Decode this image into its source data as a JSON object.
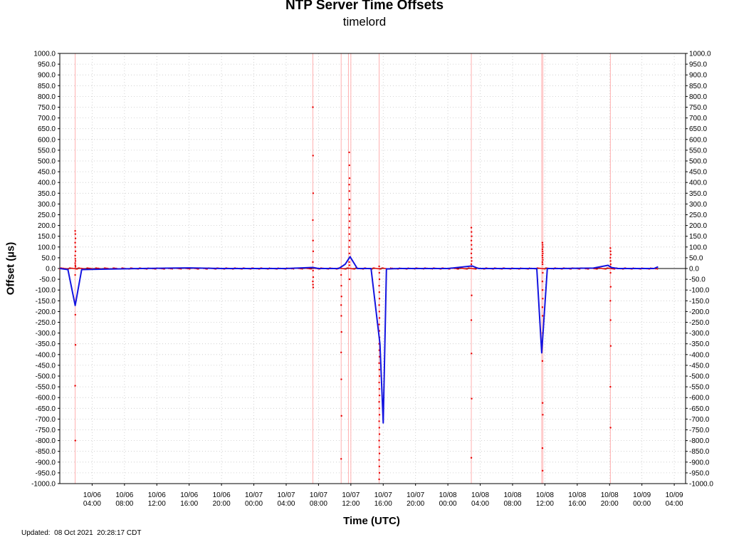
{
  "header": {
    "title": "NTP Server Time Offsets",
    "subtitle": "timelord"
  },
  "footer": {
    "updated": "Updated:  08 Oct 2021  20:28:17 CDT"
  },
  "colors": {
    "raw_points": "#e80000",
    "average_line": "#1414e0",
    "event_lines": "#ffb0b0",
    "grid": "#c8c8c8"
  },
  "chart_data": {
    "type": "line",
    "title": "NTP Server Time Offsets",
    "subtitle": "timelord",
    "xlabel": "Time (UTC)",
    "ylabel": "Offset (µs)",
    "ylim": [
      -1000,
      1000
    ],
    "xlim": [
      "10/06 00:00",
      "10/09 05:40"
    ],
    "grid": true,
    "y_axis_both_sides": true,
    "y_ticks": [
      "1000.0",
      "950.0",
      "900.0",
      "850.0",
      "800.0",
      "750.0",
      "700.0",
      "650.0",
      "600.0",
      "550.0",
      "500.0",
      "450.0",
      "400.0",
      "350.0",
      "300.0",
      "250.0",
      "200.0",
      "150.0",
      "100.0",
      "50.0",
      "0.0",
      "-50.0",
      "-100.0",
      "-150.0",
      "-200.0",
      "-250.0",
      "-300.0",
      "-350.0",
      "-400.0",
      "-450.0",
      "-500.0",
      "-550.0",
      "-600.0",
      "-650.0",
      "-700.0",
      "-750.0",
      "-800.0",
      "-850.0",
      "-900.0",
      "-950.0",
      "-1000.0"
    ],
    "x_ticks": [
      {
        "hour": 4,
        "date": "10/06",
        "time": "04:00"
      },
      {
        "hour": 8,
        "date": "10/06",
        "time": "08:00"
      },
      {
        "hour": 12,
        "date": "10/06",
        "time": "12:00"
      },
      {
        "hour": 16,
        "date": "10/06",
        "time": "16:00"
      },
      {
        "hour": 20,
        "date": "10/06",
        "time": "20:00"
      },
      {
        "hour": 24,
        "date": "10/07",
        "time": "00:00"
      },
      {
        "hour": 28,
        "date": "10/07",
        "time": "04:00"
      },
      {
        "hour": 32,
        "date": "10/07",
        "time": "08:00"
      },
      {
        "hour": 36,
        "date": "10/07",
        "time": "12:00"
      },
      {
        "hour": 40,
        "date": "10/07",
        "time": "16:00"
      },
      {
        "hour": 44,
        "date": "10/07",
        "time": "20:00"
      },
      {
        "hour": 48,
        "date": "10/08",
        "time": "00:00"
      },
      {
        "hour": 52,
        "date": "10/08",
        "time": "04:00"
      },
      {
        "hour": 56,
        "date": "10/08",
        "time": "08:00"
      },
      {
        "hour": 60,
        "date": "10/08",
        "time": "12:00"
      },
      {
        "hour": 64,
        "date": "10/08",
        "time": "16:00"
      },
      {
        "hour": 68,
        "date": "10/08",
        "time": "20:00"
      },
      {
        "hour": 72,
        "date": "10/09",
        "time": "00:00"
      },
      {
        "hour": 76,
        "date": "10/09",
        "time": "04:00"
      }
    ],
    "event_markers_hours": [
      1.9,
      31.3,
      34.8,
      35.7,
      36.0,
      39.5,
      50.9,
      59.6,
      59.75,
      68.1
    ],
    "series": [
      {
        "role": "average",
        "x_hours": [
          0,
          1.0,
          1.9,
          2.7,
          10,
          14,
          16,
          20,
          24,
          28,
          31.3,
          32,
          34.5,
          35.3,
          35.9,
          36.8,
          38.5,
          39.6,
          40.0,
          40.4,
          42,
          48,
          50.5,
          51.0,
          51.8,
          56,
          59.0,
          59.6,
          60.3,
          62,
          66,
          67.8,
          68.2,
          69,
          72,
          73.5,
          74.0
        ],
        "values": [
          0,
          -5,
          -172,
          -5,
          0,
          2,
          3,
          0,
          0,
          0,
          5,
          0,
          0,
          20,
          55,
          0,
          0,
          -350,
          -718,
          -2,
          0,
          0,
          10,
          12,
          0,
          0,
          0,
          -392,
          0,
          0,
          2,
          15,
          5,
          0,
          0,
          0,
          8
        ]
      },
      {
        "role": "raw",
        "spikes": [
          {
            "x_hours": 1.9,
            "values": [
              175,
              160,
              140,
              120,
              100,
              80,
              60,
              45,
              35,
              25,
              15,
              8,
              -30,
              -215,
              -355,
              -545,
              -800
            ]
          },
          {
            "x_hours": 31.3,
            "values": [
              750,
              525,
              350,
              225,
              130,
              80,
              30,
              -10,
              -40,
              -60,
              -75,
              -88
            ]
          },
          {
            "x_hours": 34.8,
            "values": [
              -30,
              -80,
              -130,
              -170,
              -220,
              -295,
              -390,
              -515,
              -685,
              -885
            ]
          },
          {
            "x_hours": 35.8,
            "values": [
              540,
              480,
              420,
              390,
              360,
              320,
              280,
              250,
              220,
              190,
              160,
              130,
              100,
              70,
              50,
              30,
              15,
              -50
            ]
          },
          {
            "x_hours": 39.5,
            "values": [
              10,
              -20,
              -50,
              -80,
              -110,
              -140,
              -170,
              -200,
              -230,
              -260,
              -290,
              -320,
              -350,
              -380,
              -410,
              -440,
              -470,
              -500,
              -530,
              -560,
              -590,
              -620,
              -650,
              -680,
              -710,
              -740,
              -770,
              -800,
              -830,
              -860,
              -890,
              -920,
              -950,
              -980
            ]
          },
          {
            "x_hours": 50.9,
            "values": [
              190,
              170,
              150,
              130,
              110,
              90,
              70,
              50,
              35,
              20,
              10,
              -125,
              -240,
              -395,
              -605,
              -880
            ]
          },
          {
            "x_hours": 59.7,
            "values": [
              120,
              110,
              100,
              90,
              80,
              70,
              60,
              50,
              40,
              30,
              20,
              -20,
              -60,
              -100,
              -140,
              -180,
              -220,
              -300,
              -430,
              -625,
              -680,
              -835,
              -940
            ]
          },
          {
            "x_hours": 68.1,
            "values": [
              95,
              80,
              65,
              50,
              35,
              20,
              10,
              -20,
              -85,
              -150,
              -240,
              -360,
              -550,
              -740
            ]
          }
        ]
      }
    ]
  }
}
